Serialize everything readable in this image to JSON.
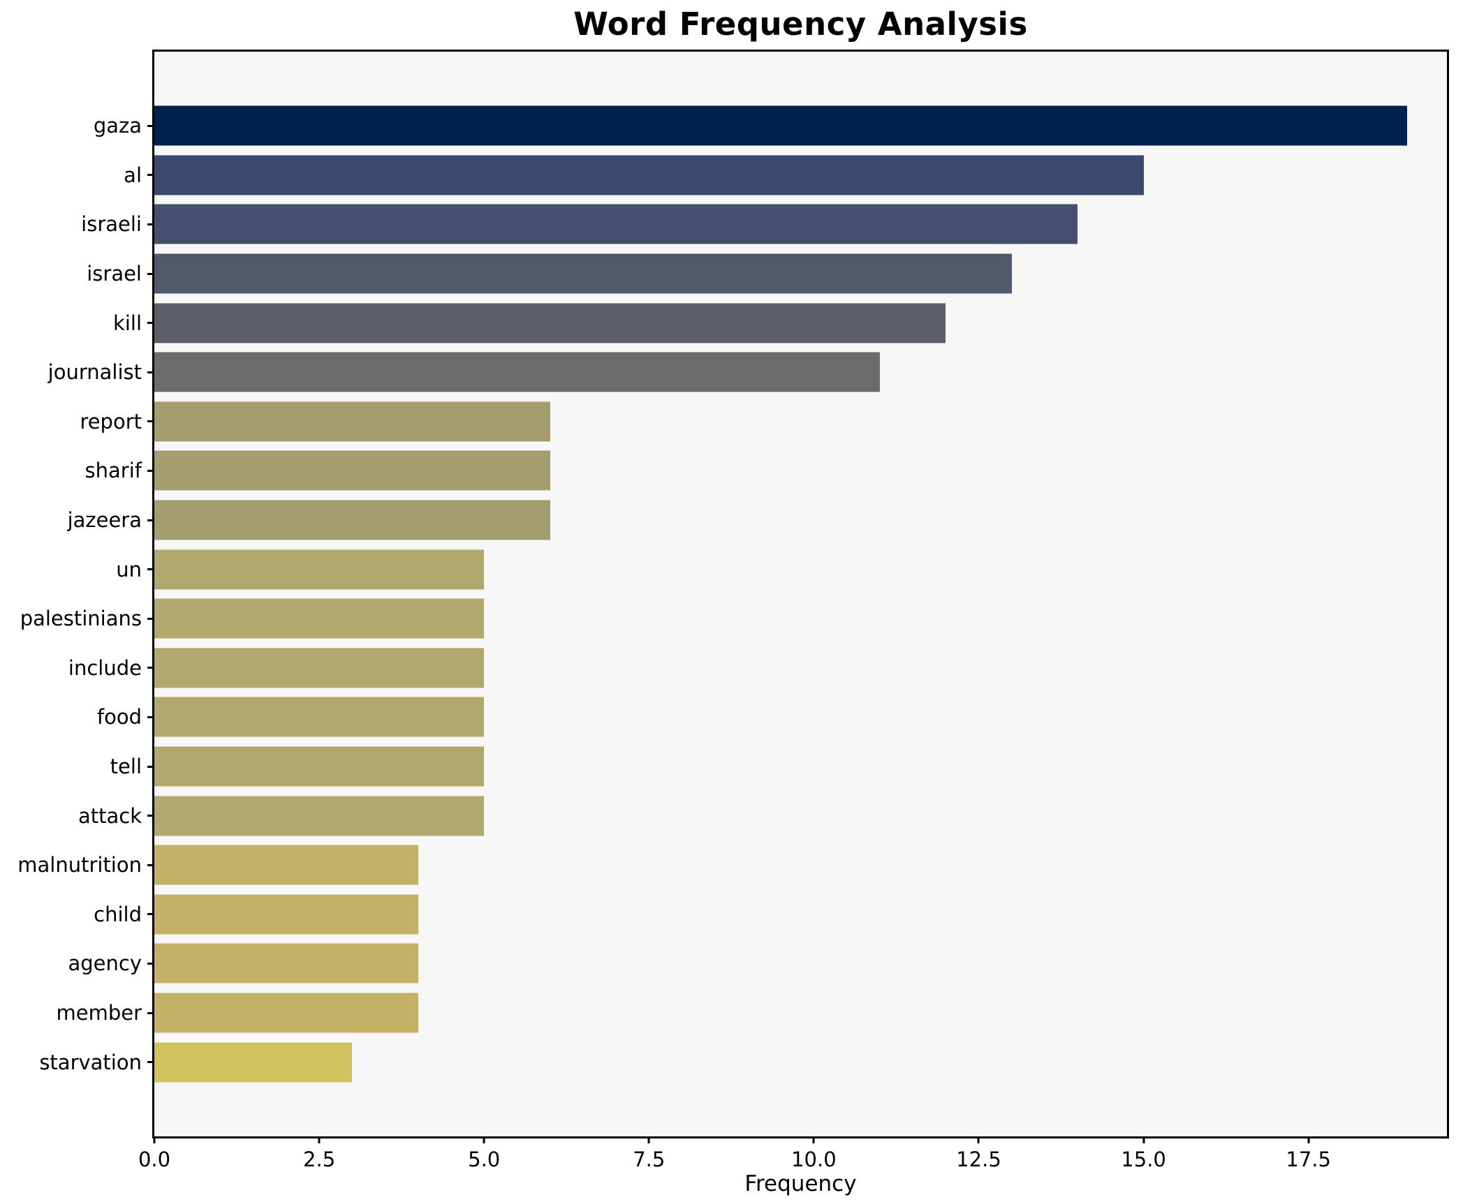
{
  "chart_data": {
    "type": "bar",
    "orientation": "horizontal",
    "title": "Word Frequency Analysis",
    "xlabel": "Frequency",
    "ylabel": "",
    "categories": [
      "gaza",
      "al",
      "israeli",
      "israel",
      "kill",
      "journalist",
      "report",
      "sharif",
      "jazeera",
      "un",
      "palestinians",
      "include",
      "food",
      "tell",
      "attack",
      "malnutrition",
      "child",
      "agency",
      "member",
      "starvation"
    ],
    "values": [
      19,
      15,
      14,
      13,
      12,
      11,
      6,
      6,
      6,
      5,
      5,
      5,
      5,
      5,
      5,
      4,
      4,
      4,
      4,
      3
    ],
    "bar_colors": [
      "#00224e",
      "#3a4a6e",
      "#46506e",
      "#53586d",
      "#5c6066",
      "#6a6d6c",
      "#a59d6e",
      "#a59d6e",
      "#a59d6e",
      "#b2a76c",
      "#b2a76c",
      "#b2a76c",
      "#b2a76c",
      "#b2a76c",
      "#b2a76c",
      "#c2b166",
      "#c2b166",
      "#c2b166",
      "#c2b166",
      "#d3c35f"
    ],
    "xlim": [
      0,
      19.6
    ],
    "x_ticks": [
      0.0,
      2.5,
      5.0,
      7.5,
      10.0,
      12.5,
      15.0,
      17.5
    ],
    "x_tick_labels": [
      "0.0",
      "2.5",
      "5.0",
      "7.5",
      "10.0",
      "12.5",
      "15.0",
      "17.5"
    ],
    "grid": false,
    "legend": false,
    "plot_background": "#f7f7f7",
    "figure_background": "#ffffff",
    "spine_color": "#000000"
  }
}
